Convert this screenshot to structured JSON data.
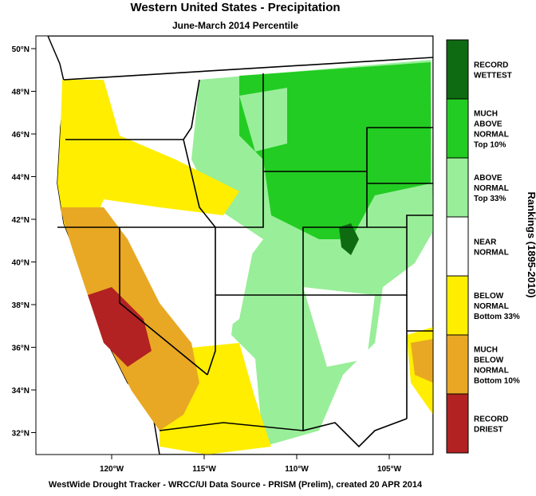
{
  "header": {
    "title": "Western United States - Precipitation",
    "subtitle": "June-March 2014 Percentile"
  },
  "map": {
    "lat_labels": [
      "50°N",
      "48°N",
      "46°N",
      "44°N",
      "42°N",
      "40°N",
      "38°N",
      "36°N",
      "34°N",
      "32°N"
    ],
    "lon_labels": [
      "120°W",
      "115°W",
      "110°W",
      "105°W"
    ]
  },
  "legend": {
    "title": "Rankings (1895-2010)",
    "items": [
      {
        "lines": [
          "RECORD",
          "WETTEST"
        ],
        "color": "#0f6b12"
      },
      {
        "lines": [
          "MUCH",
          "ABOVE",
          "NORMAL",
          "Top 10%"
        ],
        "color": "#22cc22"
      },
      {
        "lines": [
          "ABOVE",
          "NORMAL",
          "Top 33%"
        ],
        "color": "#99ee99"
      },
      {
        "lines": [
          "NEAR",
          "NORMAL"
        ],
        "color": "#ffffff"
      },
      {
        "lines": [
          "BELOW",
          "NORMAL",
          "Bottom 33%"
        ],
        "color": "#ffee00"
      },
      {
        "lines": [
          "MUCH",
          "BELOW",
          "NORMAL",
          "Bottom 10%"
        ],
        "color": "#e8a823"
      },
      {
        "lines": [
          "RECORD",
          "DRIEST"
        ],
        "color": "#b22222"
      }
    ]
  },
  "footer": "WestWide Drought Tracker - WRCC/UI  Data Source - PRISM (Prelim), created 20 APR 2014"
}
